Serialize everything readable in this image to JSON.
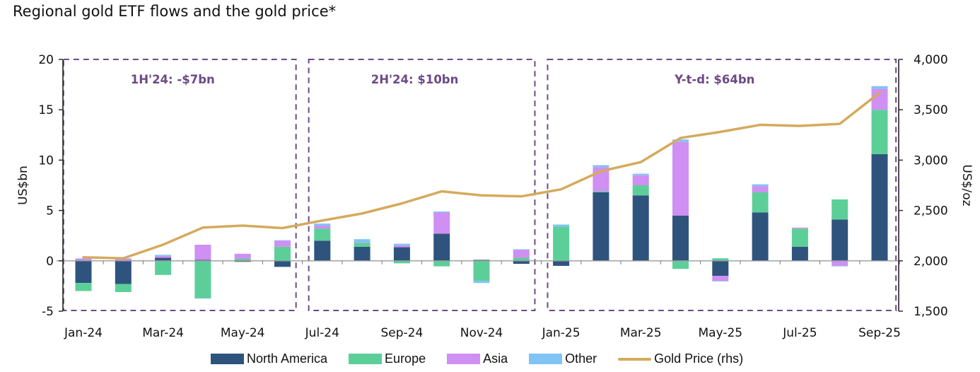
{
  "chart_data": {
    "type": "bar",
    "subtype": "stacked-bar-with-line",
    "title": "Regional gold ETF flows and the gold price*",
    "ylabel": "US$bn",
    "y2label": "US$/oz",
    "ylim": [
      -5,
      20
    ],
    "y2lim": [
      1500,
      4000
    ],
    "yticks": [
      "20",
      "15",
      "10",
      "5",
      "0",
      "-5"
    ],
    "yticks_values": [
      20,
      15,
      10,
      5,
      0,
      -5
    ],
    "y2ticks": [
      "4,000",
      "3,500",
      "3,000",
      "2,500",
      "2,000",
      "1,500"
    ],
    "y2ticks_values": [
      4000,
      3500,
      3000,
      2500,
      2000,
      1500
    ],
    "categories": [
      "Jan-24",
      "Feb-24",
      "Mar-24",
      "Apr-24",
      "May-24",
      "Jun-24",
      "Jul-24",
      "Aug-24",
      "Sep-24",
      "Oct-24",
      "Nov-24",
      "Dec-24",
      "Jan-25",
      "Feb-25",
      "Mar-25",
      "Apr-25",
      "May-25",
      "Jun-25",
      "Jul-25",
      "Aug-25",
      "Sep-25"
    ],
    "xtick_labels": [
      "Jan-24",
      "Mar-24",
      "May-24",
      "Jul-24",
      "Sep-24",
      "Nov-24",
      "Jan-25",
      "Mar-25",
      "May-25",
      "Jul-25",
      "Sep-25"
    ],
    "series": [
      {
        "name": "North America",
        "color": "#2e547e",
        "values": [
          -2.2,
          -2.3,
          0.3,
          0.1,
          -0.1,
          -0.6,
          2.0,
          1.4,
          1.35,
          2.7,
          0.1,
          -0.3,
          -0.5,
          6.8,
          6.5,
          4.5,
          -1.5,
          4.8,
          1.4,
          4.1,
          10.6
        ]
      },
      {
        "name": "Europe",
        "color": "#5ccf99",
        "values": [
          -0.8,
          -0.8,
          -1.4,
          -3.7,
          0.2,
          1.4,
          1.2,
          0.4,
          -0.25,
          -0.55,
          -2.0,
          0.3,
          3.4,
          0.1,
          1.0,
          -0.8,
          0.25,
          2.0,
          1.8,
          2.0,
          4.4
        ]
      },
      {
        "name": "Asia",
        "color": "#d08ff2",
        "values": [
          0.2,
          0.2,
          0.2,
          1.5,
          0.5,
          0.6,
          0.3,
          0.05,
          0.2,
          2.1,
          0.0,
          0.8,
          0.0,
          2.4,
          1.0,
          7.3,
          -0.5,
          0.6,
          0.1,
          -0.5,
          2.1
        ]
      },
      {
        "name": "Other",
        "color": "#7fc4f5",
        "values": [
          0.05,
          0.05,
          0.1,
          -0.05,
          0.0,
          0.05,
          0.2,
          0.3,
          0.15,
          0.1,
          -0.2,
          0.05,
          0.2,
          0.2,
          0.15,
          0.25,
          -0.05,
          0.2,
          -0.05,
          -0.05,
          0.25
        ]
      }
    ],
    "line_series": {
      "name": "Gold Price (rhs)",
      "color": "#d4aa5c",
      "axis": "right",
      "values": [
        2035,
        2025,
        2160,
        2330,
        2350,
        2325,
        2400,
        2470,
        2570,
        2690,
        2650,
        2640,
        2710,
        2890,
        2980,
        3220,
        3280,
        3350,
        3340,
        3360,
        3670
      ]
    },
    "annotations": [
      {
        "text": "1H'24: -$7bn",
        "from": "Jan-24",
        "to": "Jun-24"
      },
      {
        "text": "2H'24: $10bn",
        "from": "Jul-24",
        "to": "Dec-24"
      },
      {
        "text": "Y-t-d: $64bn",
        "from": "Jan-25",
        "to": "Sep-25"
      }
    ],
    "annotation_color": "#6b4a86",
    "legend_position": "bottom",
    "grid": false
  },
  "legend": {
    "items": [
      {
        "label": "North America",
        "color": "#2e547e",
        "kind": "box"
      },
      {
        "label": "Europe",
        "color": "#5ccf99",
        "kind": "box"
      },
      {
        "label": "Asia",
        "color": "#d08ff2",
        "kind": "box"
      },
      {
        "label": "Other",
        "color": "#7fc4f5",
        "kind": "box"
      },
      {
        "label": "Gold Price (rhs)",
        "color": "#d4aa5c",
        "kind": "line"
      }
    ]
  }
}
